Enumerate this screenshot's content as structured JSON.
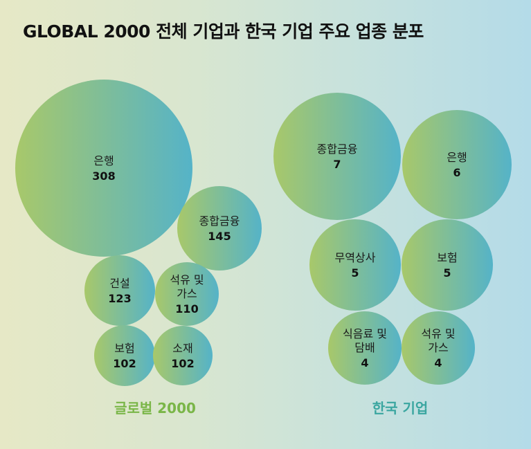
{
  "title": "GLOBAL 2000 전체 기업과 한국 기업 주요 업종 분포",
  "colors": {
    "bubble_start": "#a8c86a",
    "bubble_end": "#55b3c8",
    "global_label": "#7ab648",
    "korea_label": "#3aa6a0"
  },
  "chart_data": [
    {
      "type": "bubble",
      "group": "글로벌 2000",
      "items": [
        {
          "label": [
            "은행"
          ],
          "value": 308
        },
        {
          "label": [
            "종합금융"
          ],
          "value": 145
        },
        {
          "label": [
            "건설"
          ],
          "value": 123
        },
        {
          "label": [
            "석유 및",
            "가스"
          ],
          "value": 110
        },
        {
          "label": [
            "보험"
          ],
          "value": 102
        },
        {
          "label": [
            "소재"
          ],
          "value": 102
        }
      ]
    },
    {
      "type": "bubble",
      "group": "한국 기업",
      "items": [
        {
          "label": [
            "종합금융"
          ],
          "value": 7
        },
        {
          "label": [
            "은행"
          ],
          "value": 6
        },
        {
          "label": [
            "무역상사"
          ],
          "value": 5
        },
        {
          "label": [
            "보험"
          ],
          "value": 5
        },
        {
          "label": [
            "식음료 및",
            "담배"
          ],
          "value": 4
        },
        {
          "label": [
            "석유 및",
            "가스"
          ],
          "value": 4
        }
      ]
    }
  ]
}
